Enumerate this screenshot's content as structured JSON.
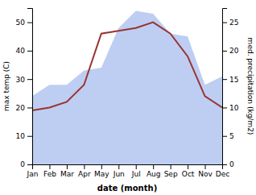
{
  "chart_data": {
    "type": "line",
    "categories": [
      "Jan",
      "Feb",
      "Mar",
      "Apr",
      "May",
      "Jun",
      "Jul",
      "Aug",
      "Sep",
      "Oct",
      "Nov",
      "Dec"
    ],
    "series": [
      {
        "type": "area",
        "color": "#b3c6f0",
        "axis": "y2",
        "values": [
          12,
          14,
          14,
          16.5,
          17,
          24,
          27,
          26.5,
          23,
          22.5,
          14,
          15.5
        ]
      },
      {
        "type": "line",
        "color": "#993333",
        "values": [
          19,
          20,
          22,
          28,
          46,
          47,
          48,
          50,
          46,
          38,
          24,
          20
        ]
      }
    ],
    "ylim": [
      0,
      55
    ],
    "yticks": [
      0,
      10,
      20,
      30,
      40,
      50
    ],
    "y2lim": [
      0,
      27.5
    ],
    "y2ticks": [
      0,
      5,
      10,
      15,
      20,
      25
    ],
    "xlabel": "date (month)",
    "ylabel": "max temp (C)",
    "y2label": "med. precipitation (kg/m2)",
    "grid": false
  }
}
